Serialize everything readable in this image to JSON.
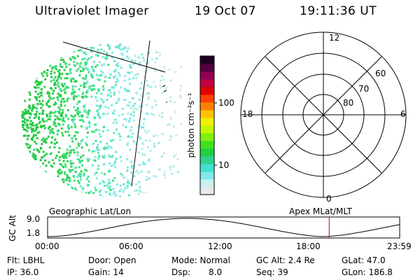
{
  "header": {
    "instrument": "Ultraviolet Imager",
    "date": "19 Oct 07",
    "time": "19:11:36 UT"
  },
  "colorbar": {
    "label": "photon cm⁻²s⁻¹",
    "ticks": [
      "100",
      "10"
    ],
    "colors": [
      "#e8e8e8",
      "#c8f0f0",
      "#80e8e8",
      "#40e0d0",
      "#30d090",
      "#20d040",
      "#40e020",
      "#80f010",
      "#c0f800",
      "#f0f000",
      "#ffc000",
      "#ff8000",
      "#ff4000",
      "#e00000",
      "#c00040",
      "#900050",
      "#500040",
      "#200020"
    ]
  },
  "polar": {
    "labels": {
      "top": "12",
      "left": "18",
      "right": "6",
      "bottom": "0"
    },
    "rings": [
      "60",
      "70",
      "80"
    ]
  },
  "timeline": {
    "ylabel": "GC Alt",
    "ytop": "9.0",
    "ybottom": "1.8",
    "left_caption": "Geographic Lat/Lon",
    "right_caption": "Apex MLat/MLT",
    "xticks": [
      "00:00",
      "06:00",
      "12:00",
      "18:00",
      "23:59"
    ],
    "marker_time": "19:11:36"
  },
  "info": {
    "filter": "Flt: LBHL",
    "ip": "IP: 36.0",
    "door": "Door: Open",
    "gain": "Gain: 14",
    "mode": "Mode: Normal",
    "dsp_label": "Dsp:",
    "dsp_value": "8.0",
    "gcalt": "GC Alt: 2.4 Re",
    "seq": "Seq: 39",
    "glat": "GLat: 47.0",
    "glon": "GLon: 186.8"
  }
}
